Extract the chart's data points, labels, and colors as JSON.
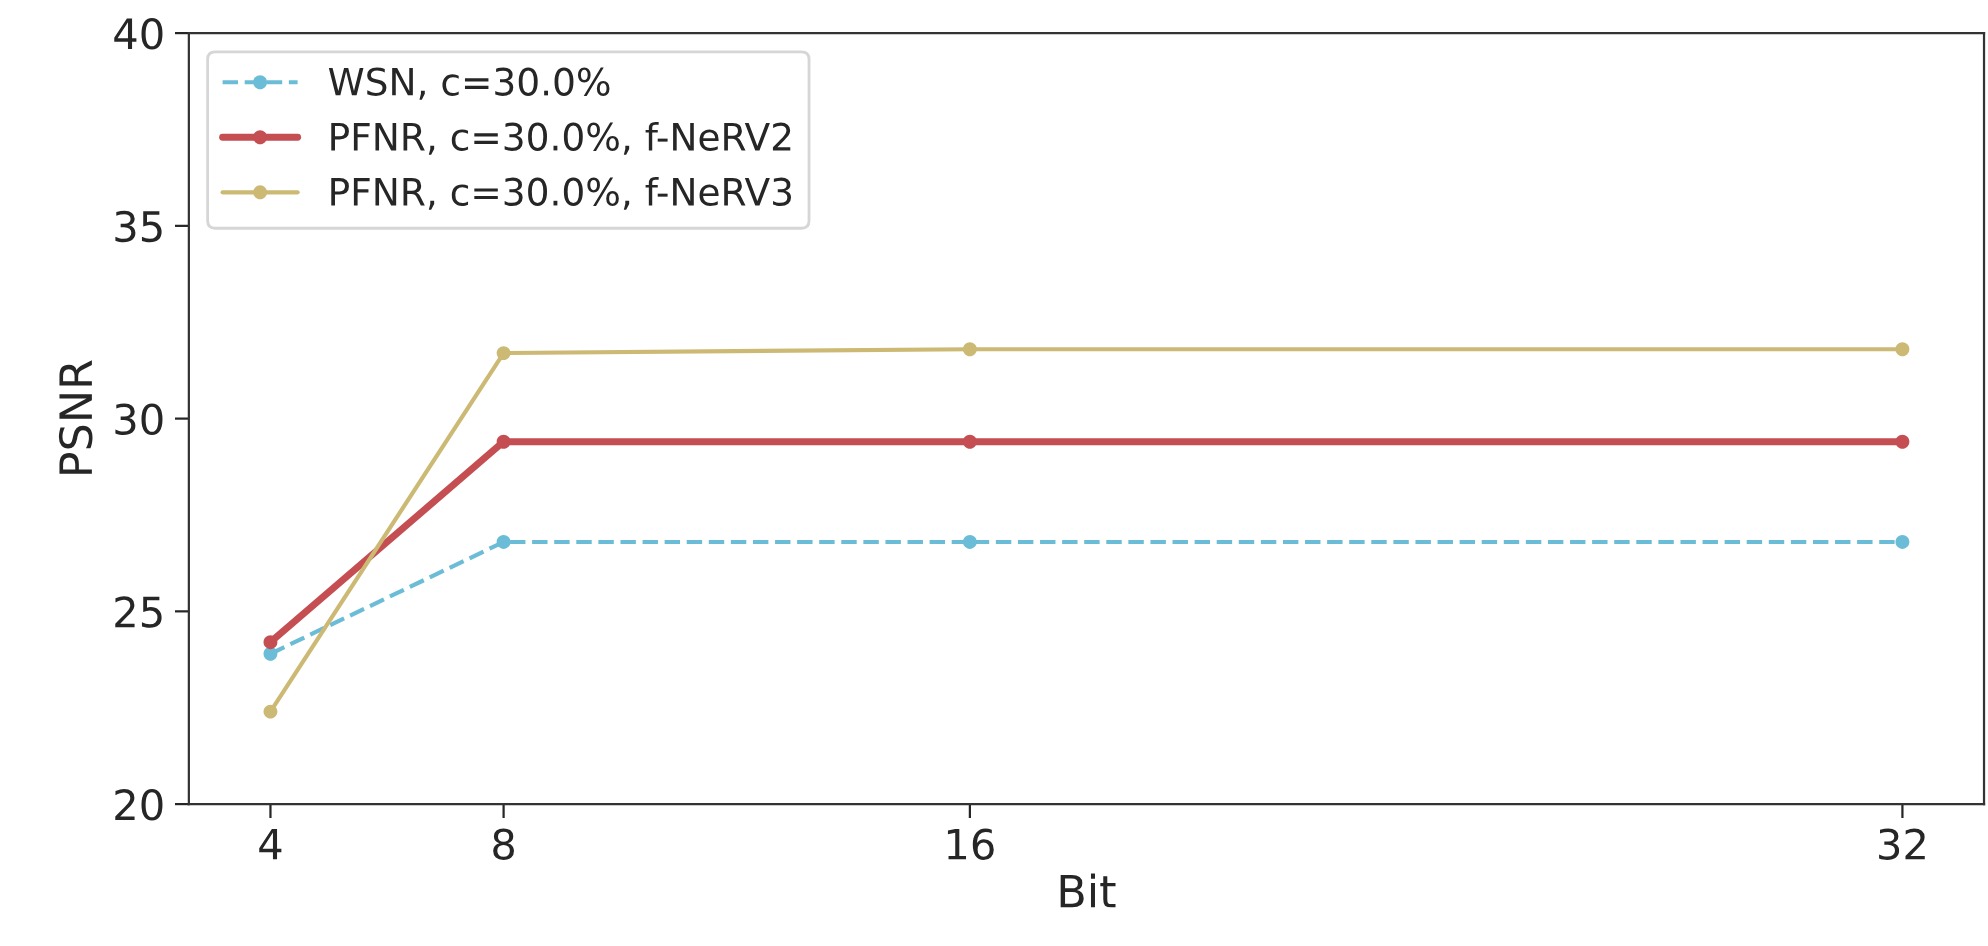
{
  "chart_data": {
    "type": "line",
    "xlabel": "Bit",
    "ylabel": "PSNR",
    "x": [
      4,
      8,
      16,
      32
    ],
    "xlim": [
      2.6,
      33.4
    ],
    "xticks": [
      4,
      8,
      16,
      32
    ],
    "ylim": [
      20,
      40
    ],
    "yticks": [
      20,
      25,
      30,
      35,
      40
    ],
    "grid": false,
    "legend": "top left",
    "marker": "circle",
    "series": [
      {
        "name": "WSN, c=30.0%",
        "color": "#6bbcd6",
        "values": [
          23.9,
          26.8,
          26.8,
          26.8
        ],
        "line_style": "dashed"
      },
      {
        "name": "PFNR, c=30.0%, f-NeRV2",
        "color": "#c44e52",
        "values": [
          24.2,
          29.4,
          29.4,
          29.4
        ],
        "line_style": "solid"
      },
      {
        "name": "PFNR, c=30.0%, f-NeRV3",
        "color": "#ccb974",
        "values": [
          22.4,
          31.7,
          31.8,
          31.8
        ],
        "line_style": "solid"
      }
    ]
  }
}
